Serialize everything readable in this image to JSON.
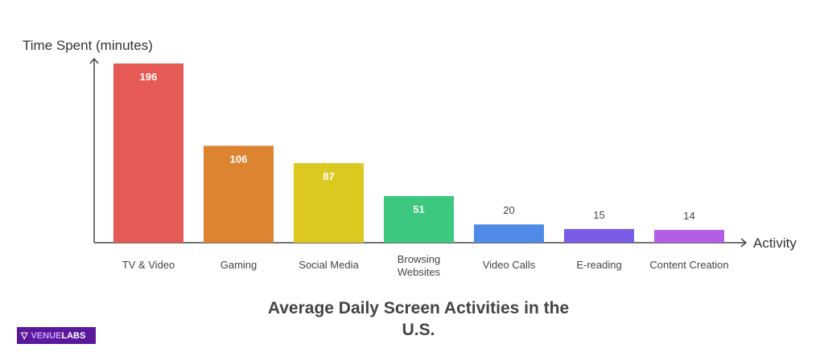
{
  "chart_data": {
    "type": "bar",
    "title": "Average Daily Screen Activities in the U.S.",
    "xlabel": "Activity",
    "ylabel": "Time Spent (minutes)",
    "categories": [
      "TV & Video",
      "Gaming",
      "Social Media",
      "Browsing Websites",
      "Video Calls",
      "E-reading",
      "Content Creation"
    ],
    "values": [
      196,
      106,
      87,
      51,
      20,
      15,
      14
    ],
    "colors": [
      "#E55A54",
      "#DD8431",
      "#DDC81F",
      "#3CC87E",
      "#4F8AE6",
      "#7B5CE6",
      "#B35CE6"
    ],
    "ylim": [
      0,
      196
    ],
    "grid": false,
    "legend": "none"
  },
  "logo": {
    "text_a": "VENUE",
    "text_b": "LABS"
  }
}
